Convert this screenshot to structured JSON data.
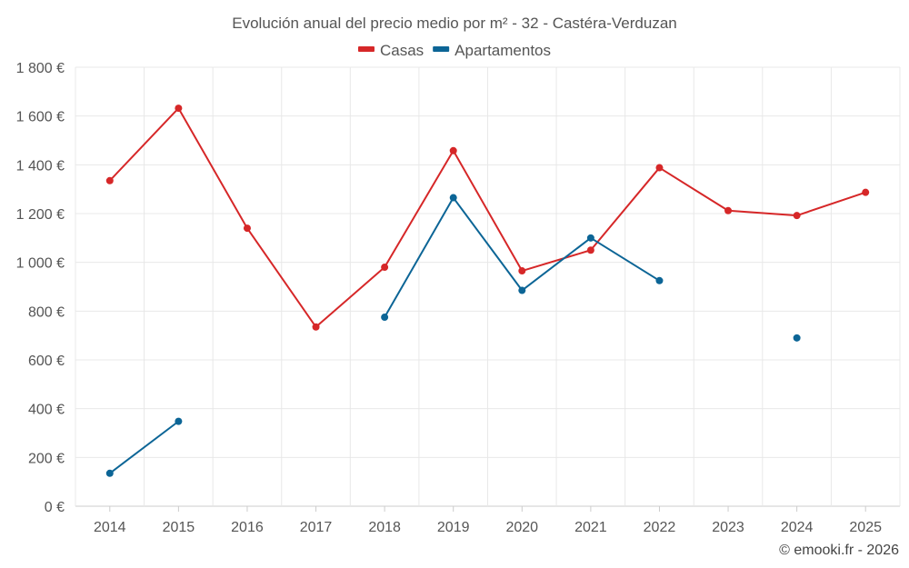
{
  "chart_data": {
    "type": "line",
    "title": "Evolución anual del precio medio por m² - 32 - Castéra-Verduzan",
    "categories": [
      "2014",
      "2015",
      "2016",
      "2017",
      "2018",
      "2019",
      "2020",
      "2021",
      "2022",
      "2023",
      "2024",
      "2025"
    ],
    "series": [
      {
        "name": "Casas",
        "color": "#d62728",
        "values": [
          1335,
          1632,
          1140,
          735,
          980,
          1458,
          965,
          1050,
          1388,
          1212,
          1192,
          1287
        ]
      },
      {
        "name": "Apartamentos",
        "color": "#0c6596",
        "values": [
          135,
          348,
          null,
          null,
          775,
          1265,
          885,
          1100,
          925,
          null,
          690,
          null
        ]
      }
    ],
    "ylim": [
      0,
      1800
    ],
    "yticks": [
      0,
      200,
      400,
      600,
      800,
      1000,
      1200,
      1400,
      1600,
      1800
    ],
    "ytick_labels": [
      "0 €",
      "200 €",
      "400 €",
      "600 €",
      "800 €",
      "1 000 €",
      "1 200 €",
      "1 400 €",
      "1 600 €",
      "1 800 €"
    ],
    "xlabel": "",
    "ylabel": "",
    "grid": true,
    "legend": "top-center",
    "credit": "© emooki.fr - 2026"
  }
}
